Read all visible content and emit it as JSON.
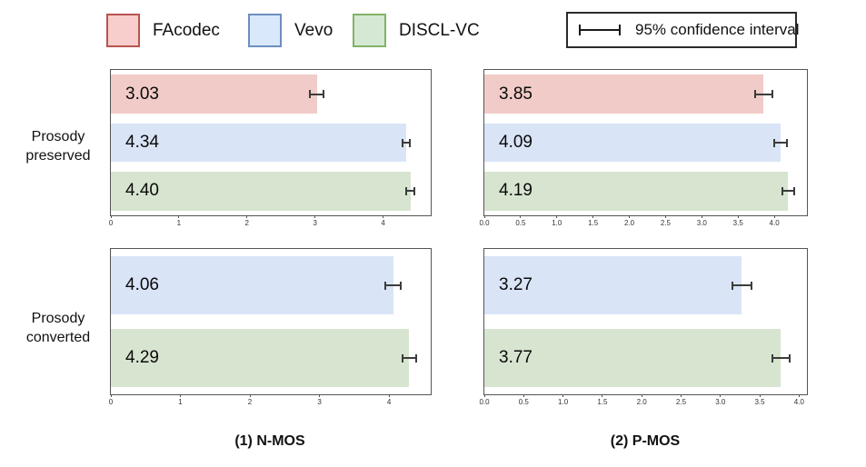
{
  "legend": {
    "items": [
      {
        "label": "FAcodec",
        "fill": "#f8cecc",
        "border": "#b85450"
      },
      {
        "label": "Vevo",
        "fill": "#dae8fc",
        "border": "#6c8ebf"
      },
      {
        "label": "DISCL-VC",
        "fill": "#d5e8d4",
        "border": "#82b366"
      }
    ],
    "ci_label": "95% confidence interval",
    "ci_icon": "error-bar-icon"
  },
  "rows": [
    {
      "line1": "Prosody",
      "line2": "preserved"
    },
    {
      "line1": "Prosody",
      "line2": "converted"
    }
  ],
  "column_titles": [
    "(1) N-MOS",
    "(2) P-MOS"
  ],
  "bar_colors": {
    "FAcodec": "#f1cbc7",
    "Vevo": "#d9e4f6",
    "DISCL-VC": "#d7e5d0"
  },
  "chart_data": [
    {
      "id": "nmos-prosody-preserved",
      "type": "bar",
      "orientation": "horizontal",
      "row": "Prosody preserved",
      "column": "(1) N-MOS",
      "xlim": [
        0,
        4.7
      ],
      "grid": false,
      "ticks": [
        0,
        1,
        2,
        3,
        4
      ],
      "tick_labels": [
        "0",
        "1",
        "2",
        "3",
        "4"
      ],
      "bars": [
        {
          "name": "FAcodec",
          "value": 3.03,
          "ci": 0.1
        },
        {
          "name": "Vevo",
          "value": 4.34,
          "ci": 0.05
        },
        {
          "name": "DISCL-VC",
          "value": 4.4,
          "ci": 0.06
        }
      ]
    },
    {
      "id": "pmos-prosody-preserved",
      "type": "bar",
      "orientation": "horizontal",
      "row": "Prosody preserved",
      "column": "(2) P-MOS",
      "xlim": [
        0,
        4.45
      ],
      "grid": false,
      "ticks": [
        0,
        0.5,
        1,
        1.5,
        2,
        2.5,
        3,
        3.5,
        4
      ],
      "tick_labels": [
        "0.0",
        "0.5",
        "1.0",
        "1.5",
        "2.0",
        "2.5",
        "3.0",
        "3.5",
        "4.0"
      ],
      "bars": [
        {
          "name": "FAcodec",
          "value": 3.85,
          "ci": 0.12
        },
        {
          "name": "Vevo",
          "value": 4.09,
          "ci": 0.09
        },
        {
          "name": "DISCL-VC",
          "value": 4.19,
          "ci": 0.08
        }
      ]
    },
    {
      "id": "nmos-prosody-converted",
      "type": "bar",
      "orientation": "horizontal",
      "row": "Prosody converted",
      "column": "(1) N-MOS",
      "xlim": [
        0,
        4.6
      ],
      "grid": false,
      "ticks": [
        0,
        1,
        2,
        3,
        4
      ],
      "tick_labels": [
        "0",
        "1",
        "2",
        "3",
        "4"
      ],
      "bars": [
        {
          "name": "Vevo",
          "value": 4.06,
          "ci": 0.11
        },
        {
          "name": "DISCL-VC",
          "value": 4.29,
          "ci": 0.1
        }
      ]
    },
    {
      "id": "pmos-prosody-converted",
      "type": "bar",
      "orientation": "horizontal",
      "row": "Prosody converted",
      "column": "(2) P-MOS",
      "xlim": [
        0,
        4.1
      ],
      "grid": false,
      "ticks": [
        0,
        0.5,
        1,
        1.5,
        2,
        2.5,
        3,
        3.5,
        4
      ],
      "tick_labels": [
        "0.0",
        "0.5",
        "1.0",
        "1.5",
        "2.0",
        "2.5",
        "3.0",
        "3.5",
        "4.0"
      ],
      "bars": [
        {
          "name": "Vevo",
          "value": 3.27,
          "ci": 0.12
        },
        {
          "name": "DISCL-VC",
          "value": 3.77,
          "ci": 0.11
        }
      ]
    }
  ]
}
